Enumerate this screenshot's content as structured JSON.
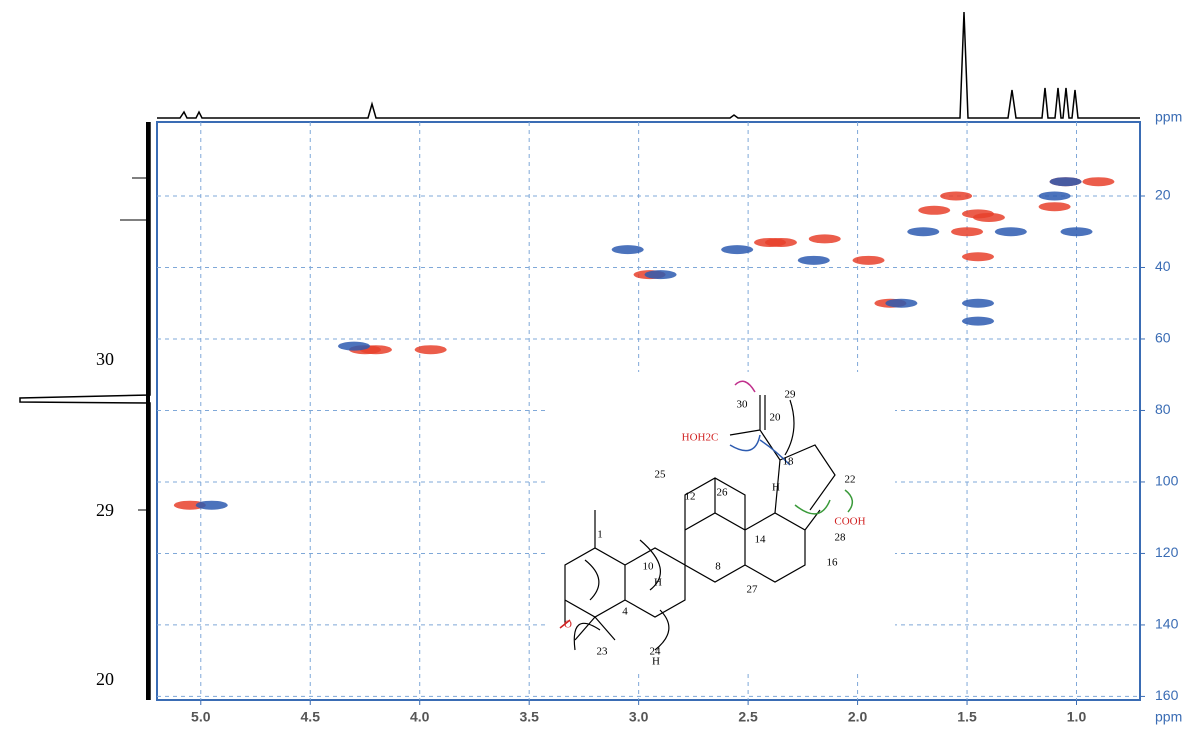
{
  "chart_data": {
    "type": "scatter",
    "xlabel": "ppm",
    "ylabel": "ppm",
    "annotations": [
      "30",
      "29",
      "20"
    ],
    "xlim": [
      5.2,
      0.71
    ],
    "ylim": [
      -0.7,
      161
    ],
    "xticks": [
      {
        "value": 5,
        "label": "5.0"
      },
      4.5,
      {
        "value": 4,
        "label": "4.0"
      },
      3.5,
      {
        "value": 3,
        "label": "3.0"
      },
      2.5,
      {
        "value": 2,
        "label": "2.0"
      },
      1.5,
      {
        "value": 1,
        "label": "1.0"
      }
    ],
    "yticks": [
      20,
      40,
      60,
      80,
      100,
      120,
      140,
      160
    ],
    "grid": true,
    "series": [
      {
        "color": "#e8412c",
        "x": [
          5.05,
          4.2,
          4.25,
          3.95,
          2.95,
          2.4,
          2.35,
          2.15,
          1.95,
          1.55,
          1.45,
          1.5,
          1.45,
          1.05,
          0.9,
          1.1,
          1.4,
          1.85,
          1.65
        ],
        "values": [
          106.5,
          63,
          63,
          63,
          42,
          33,
          33,
          32,
          38,
          20,
          25,
          30,
          37,
          16,
          16,
          23,
          26,
          50,
          24
        ]
      },
      {
        "color": "#2d5bb0",
        "x": [
          4.95,
          4.3,
          2.9,
          2.55,
          3.05,
          2.2,
          1.8,
          1.45,
          1.45,
          1.05,
          1.1,
          1.3,
          1.0,
          1.7
        ],
        "values": [
          106.5,
          62,
          42,
          35,
          35,
          38,
          50,
          50,
          55,
          16,
          20,
          30,
          30,
          30
        ]
      }
    ]
  },
  "structure": {
    "labels": [
      "29",
      "30",
      "20",
      "HOH2C",
      "22",
      "COOH",
      "28",
      "18",
      "H",
      "12",
      "25",
      "26",
      "14",
      "16",
      "1",
      "10",
      "8",
      "H",
      "27",
      "4",
      "O",
      "23",
      "24",
      "H"
    ]
  }
}
